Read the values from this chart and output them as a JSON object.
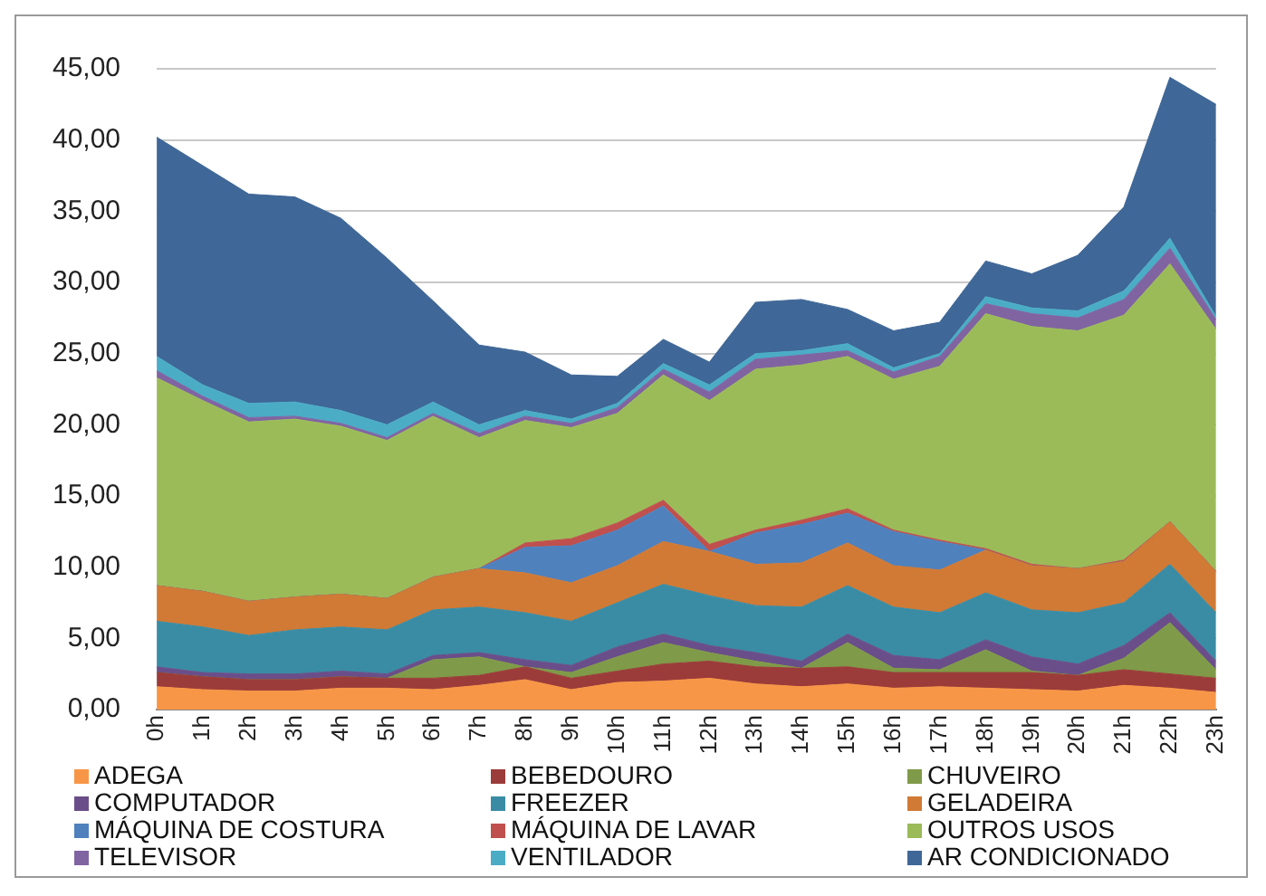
{
  "chart_data": {
    "type": "area",
    "stacked": true,
    "categories": [
      "0h",
      "1h",
      "2h",
      "3h",
      "4h",
      "5h",
      "6h",
      "7h",
      "8h",
      "9h",
      "10h",
      "11h",
      "12h",
      "13h",
      "14h",
      "15h",
      "16h",
      "17h",
      "18h",
      "19h",
      "20h",
      "21h",
      "22h",
      "23h"
    ],
    "ylim": [
      0,
      45
    ],
    "yticks": [
      {
        "value": 0,
        "label": "0,00"
      },
      {
        "value": 5,
        "label": "5,00"
      },
      {
        "value": 10,
        "label": "10,00"
      },
      {
        "value": 15,
        "label": "15,00"
      },
      {
        "value": 20,
        "label": "20,00"
      },
      {
        "value": 25,
        "label": "25,00"
      },
      {
        "value": 30,
        "label": "30,00"
      },
      {
        "value": 35,
        "label": "35,00"
      },
      {
        "value": 40,
        "label": "40,00"
      },
      {
        "value": 45,
        "label": "45,00"
      }
    ],
    "grid": "y",
    "legend": "bottom",
    "marker": "none",
    "series": [
      {
        "name": "ADEGA",
        "color": "#f79646",
        "values": [
          1.6,
          1.4,
          1.3,
          1.3,
          1.5,
          1.5,
          1.4,
          1.7,
          2.1,
          1.4,
          1.9,
          2.0,
          2.2,
          1.8,
          1.6,
          1.8,
          1.5,
          1.6,
          1.5,
          1.4,
          1.3,
          1.7,
          1.5,
          1.2
        ]
      },
      {
        "name": "BEBEDOURO",
        "color": "#9b3c3a",
        "values": [
          1.0,
          0.9,
          0.8,
          0.8,
          0.8,
          0.7,
          0.8,
          0.7,
          0.9,
          0.8,
          0.8,
          1.2,
          1.2,
          1.2,
          1.3,
          1.2,
          1.1,
          1.0,
          1.1,
          1.2,
          1.1,
          1.1,
          1.0,
          1.0
        ]
      },
      {
        "name": "CHUVEIRO",
        "color": "#7f9a48",
        "values": [
          0,
          0,
          0,
          0,
          0,
          0,
          1.3,
          1.3,
          0,
          0.4,
          1.0,
          1.5,
          0.6,
          0.4,
          0,
          1.7,
          0.3,
          0.2,
          1.6,
          0.1,
          0,
          0.8,
          3.6,
          0.6
        ]
      },
      {
        "name": "COMPUTADOR",
        "color": "#6a4e89",
        "values": [
          0.4,
          0.3,
          0.4,
          0.4,
          0.4,
          0.3,
          0.3,
          0.3,
          0.5,
          0.5,
          0.7,
          0.6,
          0.5,
          0.6,
          0.5,
          0.6,
          0.9,
          0.7,
          0.7,
          1.0,
          0.8,
          0.9,
          0.7,
          0.6
        ]
      },
      {
        "name": "FREEZER",
        "color": "#3a8ca4",
        "values": [
          3.2,
          3.2,
          2.7,
          3.1,
          3.1,
          3.1,
          3.2,
          3.2,
          3.3,
          3.1,
          3.1,
          3.5,
          3.5,
          3.3,
          3.8,
          3.4,
          3.4,
          3.3,
          3.3,
          3.3,
          3.6,
          3.0,
          3.4,
          3.4
        ]
      },
      {
        "name": "GELADEIRA",
        "color": "#d07a36",
        "values": [
          2.5,
          2.5,
          2.4,
          2.3,
          2.3,
          2.2,
          2.3,
          2.7,
          2.8,
          2.7,
          2.6,
          3.0,
          3.1,
          2.9,
          3.1,
          3.0,
          2.9,
          3.0,
          3.0,
          3.1,
          3.1,
          2.9,
          3.0,
          2.9
        ]
      },
      {
        "name": "MÁQUINA DE COSTURA",
        "color": "#4f81bd",
        "values": [
          0,
          0,
          0,
          0,
          0,
          0,
          0,
          0,
          1.8,
          2.6,
          2.5,
          2.5,
          0,
          2.2,
          2.7,
          2.1,
          2.4,
          2.0,
          0,
          0,
          0,
          0,
          0,
          0
        ]
      },
      {
        "name": "MÁQUINA DE LAVAR",
        "color": "#c0504d",
        "values": [
          0,
          0,
          0,
          0,
          0,
          0,
          0,
          0,
          0.3,
          0.5,
          0.5,
          0.4,
          0.5,
          0.2,
          0.3,
          0.3,
          0.1,
          0.1,
          0.1,
          0.1,
          0,
          0.1,
          0,
          0
        ]
      },
      {
        "name": "OUTROS USOS",
        "color": "#9bbb59",
        "values": [
          14.6,
          13.4,
          12.6,
          12.5,
          11.8,
          11.1,
          11.3,
          9.2,
          8.6,
          7.8,
          7.7,
          8.8,
          10.1,
          11.3,
          10.9,
          10.7,
          10.6,
          12.2,
          16.5,
          16.7,
          16.7,
          17.2,
          18.1,
          17.0
        ]
      },
      {
        "name": "TELEVISOR",
        "color": "#8064a2",
        "values": [
          0.5,
          0.3,
          0.3,
          0.2,
          0.2,
          0.2,
          0.2,
          0.3,
          0.3,
          0.3,
          0.4,
          0.4,
          0.6,
          0.7,
          0.7,
          0.4,
          0.5,
          0.7,
          0.7,
          0.9,
          0.9,
          1.1,
          1.1,
          0.7
        ]
      },
      {
        "name": "VENTILADOR",
        "color": "#4bacc6",
        "values": [
          1.0,
          0.8,
          1.0,
          1.0,
          0.9,
          0.9,
          0.8,
          0.6,
          0.4,
          0.3,
          0.3,
          0.4,
          0.5,
          0.4,
          0.3,
          0.5,
          0.3,
          0.2,
          0.5,
          0.4,
          0.5,
          0.6,
          0.7,
          0.2
        ]
      },
      {
        "name": "AR CONDICIONADO",
        "color": "#3f6797",
        "values": [
          15.4,
          15.4,
          14.7,
          14.4,
          13.5,
          11.7,
          7.1,
          5.6,
          4.1,
          3.1,
          1.9,
          1.7,
          1.6,
          3.6,
          3.6,
          2.4,
          2.6,
          2.2,
          2.5,
          2.4,
          3.9,
          5.9,
          11.3,
          14.9
        ]
      }
    ]
  }
}
